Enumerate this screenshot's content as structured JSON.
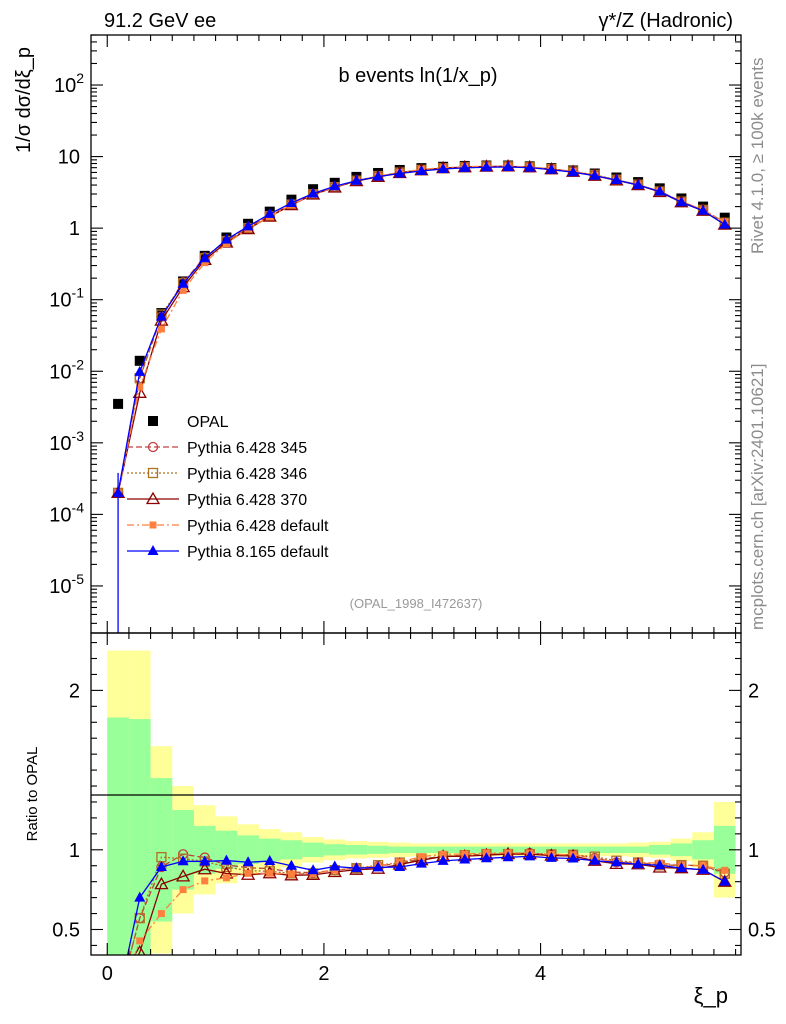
{
  "header": {
    "left": "91.2 GeV ee",
    "right": "γ*/Z (Hadronic)"
  },
  "side_labels": {
    "rivet": "Rivet 4.1.0, ≥ 100k events",
    "mcplots": "mcplots.cern.ch [arXiv:2401.10621]"
  },
  "chart_data": {
    "type": "scatter",
    "title": "b events ln(1/x_p)",
    "analysis_id": "(OPAL_1998_I472637)",
    "xlabel": "ξ_p",
    "ylabel_main": "1/σ  dσ/dξ_p",
    "ylabel_ratio": "Ratio to OPAL",
    "xlim": [
      -0.15,
      5.85
    ],
    "ylim_main": [
      2.2e-06,
      500
    ],
    "ylim_ratio": [
      0.34,
      2.36
    ],
    "yscale_main": "log",
    "x_ticks": [
      "0",
      "2",
      "4"
    ],
    "y_ticks_main": [
      "10^{-5}",
      "10^{-4}",
      "10^{-3}",
      "10^{-2}",
      "10^{-1}",
      "1",
      "10",
      "10^{2}"
    ],
    "y_ticks_ratio": [
      "0.5",
      "1",
      "2"
    ],
    "bin_edges": [
      0.0,
      0.2,
      0.4,
      0.6,
      0.8,
      1.0,
      1.2,
      1.4,
      1.6,
      1.8,
      2.0,
      2.2,
      2.4,
      2.6,
      2.8,
      3.0,
      3.2,
      3.4,
      3.6,
      3.8,
      4.0,
      4.2,
      4.4,
      4.6,
      4.8,
      5.0,
      5.2,
      5.4,
      5.6,
      5.8
    ],
    "x": [
      0.1,
      0.3,
      0.5,
      0.7,
      0.9,
      1.1,
      1.3,
      1.5,
      1.7,
      1.9,
      2.1,
      2.3,
      2.5,
      2.7,
      2.9,
      3.1,
      3.3,
      3.5,
      3.7,
      3.9,
      4.1,
      4.3,
      4.5,
      4.7,
      4.9,
      5.1,
      5.3,
      5.5,
      5.7
    ],
    "band_stat_ratio": [
      0.83,
      0.82,
      0.45,
      0.25,
      0.15,
      0.12,
      0.09,
      0.07,
      0.06,
      0.045,
      0.035,
      0.03,
      0.025,
      0.02,
      0.02,
      0.02,
      0.02,
      0.02,
      0.02,
      0.02,
      0.02,
      0.02,
      0.02,
      0.02,
      0.02,
      0.03,
      0.04,
      0.06,
      0.15
    ],
    "band_total_ratio": [
      1.25,
      1.25,
      0.65,
      0.4,
      0.28,
      0.21,
      0.16,
      0.13,
      0.11,
      0.08,
      0.065,
      0.055,
      0.05,
      0.045,
      0.04,
      0.04,
      0.04,
      0.04,
      0.04,
      0.04,
      0.04,
      0.04,
      0.04,
      0.04,
      0.045,
      0.05,
      0.07,
      0.11,
      0.3
    ],
    "legend_position": "center-left",
    "series": [
      {
        "name": "OPAL",
        "color": "#000000",
        "marker": "square-filled",
        "line": "none",
        "values": [
          0.0035,
          0.014,
          0.065,
          0.18,
          0.41,
          0.74,
          1.15,
          1.7,
          2.5,
          3.5,
          4.3,
          5.2,
          5.9,
          6.5,
          6.9,
          7.2,
          7.4,
          7.5,
          7.5,
          7.3,
          6.9,
          6.4,
          5.8,
          5.1,
          4.4,
          3.6,
          2.6,
          2.0,
          1.4
        ]
      },
      {
        "name": "Pythia 6.428 345",
        "color": "#c04040",
        "marker": "circle-open",
        "line": "dashed",
        "values": [
          0.0002,
          0.008,
          0.058,
          0.175,
          0.39,
          0.67,
          1.02,
          1.5,
          2.15,
          3.0,
          3.75,
          4.6,
          5.3,
          5.95,
          6.5,
          6.9,
          7.15,
          7.3,
          7.3,
          7.15,
          6.7,
          6.2,
          5.5,
          4.7,
          4.05,
          3.25,
          2.35,
          1.8,
          1.2
        ]
      },
      {
        "name": "Pythia 6.428 346",
        "color": "#b07020",
        "marker": "square-open",
        "line": "dotted",
        "values": [
          0.0002,
          0.008,
          0.062,
          0.17,
          0.38,
          0.66,
          1.0,
          1.47,
          2.13,
          2.98,
          3.75,
          4.6,
          5.33,
          5.98,
          6.52,
          6.9,
          7.15,
          7.3,
          7.3,
          7.1,
          6.7,
          6.2,
          5.55,
          4.75,
          4.05,
          3.25,
          2.35,
          1.8,
          1.19
        ]
      },
      {
        "name": "Pythia 6.428 370",
        "color": "#8b0000",
        "marker": "triangle-open",
        "line": "solid",
        "values": [
          0.0002,
          0.005,
          0.051,
          0.15,
          0.36,
          0.63,
          0.97,
          1.45,
          2.1,
          2.95,
          3.7,
          4.55,
          5.2,
          5.9,
          6.45,
          6.9,
          7.1,
          7.25,
          7.3,
          7.1,
          6.65,
          6.15,
          5.4,
          4.65,
          4.0,
          3.2,
          2.3,
          1.75,
          1.12
        ]
      },
      {
        "name": "Pythia 6.428 default",
        "color": "#ff7f3f",
        "marker": "square-filled-small",
        "line": "dashdot",
        "values": [
          0.0002,
          0.006,
          0.039,
          0.135,
          0.33,
          0.61,
          0.98,
          1.45,
          2.12,
          2.98,
          3.75,
          4.6,
          5.3,
          6.0,
          6.6,
          7.0,
          7.2,
          7.35,
          7.35,
          7.15,
          6.7,
          6.2,
          5.5,
          4.7,
          4.05,
          3.3,
          2.35,
          1.8,
          1.22
        ]
      },
      {
        "name": "Pythia 8.165 default",
        "color": "#0000ff",
        "marker": "triangle-filled",
        "line": "solid",
        "values": [
          0.0002,
          0.0098,
          0.058,
          0.167,
          0.38,
          0.69,
          1.06,
          1.58,
          2.25,
          3.05,
          3.85,
          4.6,
          5.25,
          5.8,
          6.3,
          6.7,
          6.95,
          7.1,
          7.15,
          7.0,
          6.55,
          6.05,
          5.4,
          4.7,
          4.0,
          3.25,
          2.3,
          1.75,
          1.12
        ]
      }
    ]
  }
}
